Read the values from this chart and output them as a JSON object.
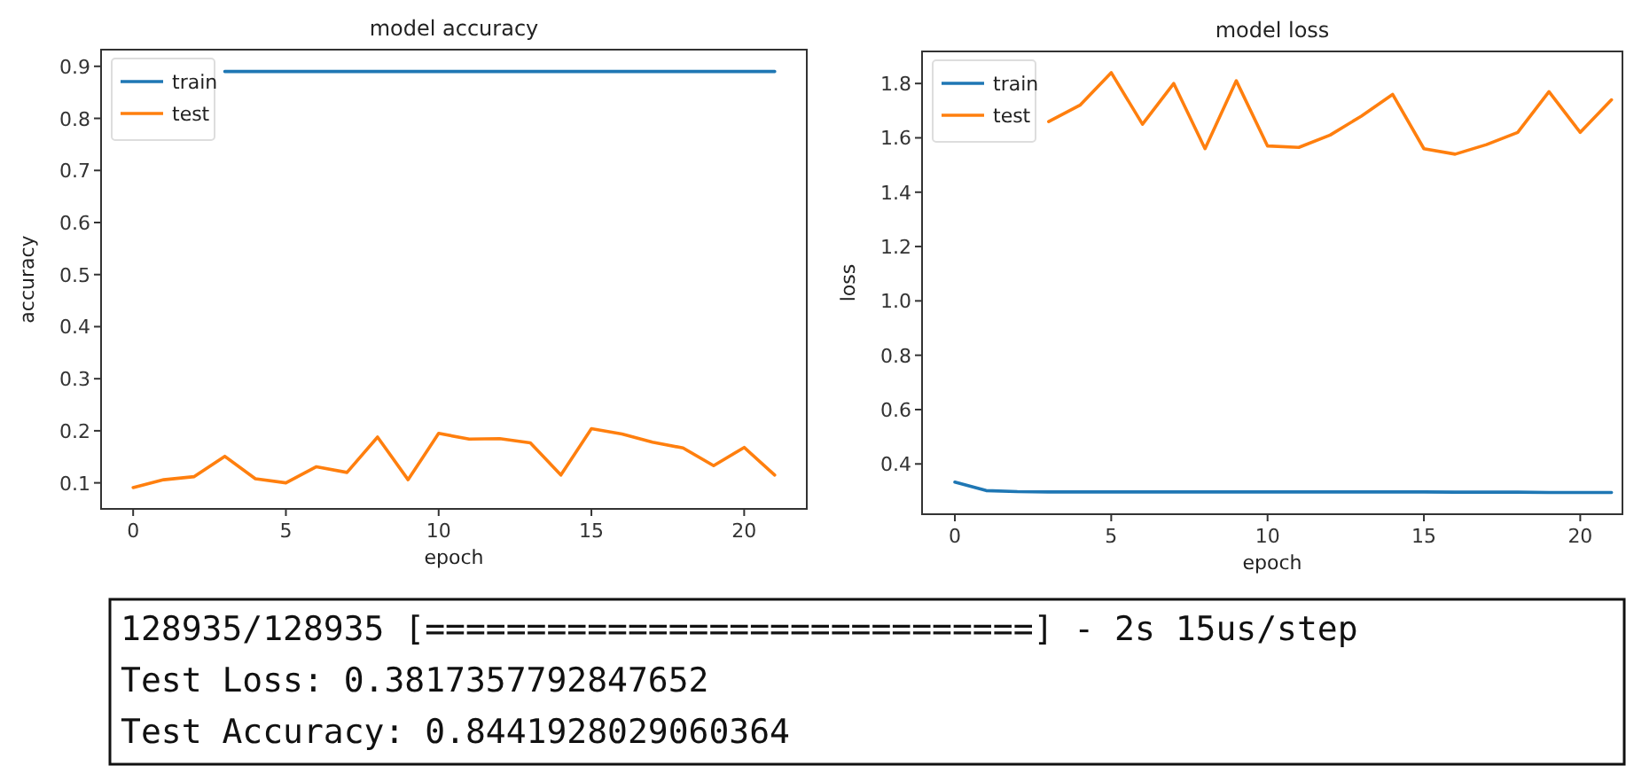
{
  "chart_data": [
    {
      "type": "line",
      "title": "model accuracy",
      "xlabel": "epoch",
      "ylabel": "accuracy",
      "x": [
        0,
        1,
        2,
        3,
        4,
        5,
        6,
        7,
        8,
        9,
        10,
        11,
        12,
        13,
        14,
        15,
        16,
        17,
        18,
        19,
        20,
        21
      ],
      "xlim": [
        -1.05,
        22.05
      ],
      "ylim": [
        0.05,
        0.932
      ],
      "xticks": [
        0,
        5,
        10,
        15,
        20
      ],
      "yticks": [
        0.1,
        0.2,
        0.3,
        0.4,
        0.5,
        0.6,
        0.7,
        0.8,
        0.9
      ],
      "legend": "top left",
      "series": [
        {
          "name": "train",
          "color": "#1f77b4",
          "values": [
            null,
            null,
            null,
            0.89,
            0.89,
            0.89,
            0.89,
            0.89,
            0.89,
            0.89,
            0.89,
            0.89,
            0.89,
            0.89,
            0.89,
            0.89,
            0.89,
            0.89,
            0.89,
            0.89,
            0.89,
            0.89
          ]
        },
        {
          "name": "test",
          "color": "#ff7f0e",
          "values": [
            0.091,
            0.106,
            0.112,
            0.151,
            0.108,
            0.1,
            0.131,
            0.12,
            0.188,
            0.106,
            0.195,
            0.184,
            0.185,
            0.177,
            0.115,
            0.204,
            0.194,
            0.178,
            0.167,
            0.133,
            0.168,
            0.115
          ]
        }
      ]
    },
    {
      "type": "line",
      "title": "model loss",
      "xlabel": "epoch",
      "ylabel": "loss",
      "x": [
        0,
        1,
        2,
        3,
        4,
        5,
        6,
        7,
        8,
        9,
        10,
        11,
        12,
        13,
        14,
        15,
        16,
        17,
        18,
        19,
        20,
        21
      ],
      "xlim": [
        -1.05,
        21.35
      ],
      "ylim": [
        0.215,
        1.918
      ],
      "xticks": [
        0,
        5,
        10,
        15,
        20
      ],
      "yticks": [
        {
          "value": 0.4,
          "label": "0.4"
        },
        {
          "value": 0.6,
          "label": "0.6"
        },
        {
          "value": 0.8,
          "label": "0.8"
        },
        {
          "value": 1.0,
          "label": "1.0"
        },
        {
          "value": 1.2,
          "label": "1.2"
        },
        {
          "value": 1.4,
          "label": "1.4"
        },
        {
          "value": 1.6,
          "label": "1.6"
        },
        {
          "value": 1.8,
          "label": "1.8"
        }
      ],
      "legend": "top left",
      "series": [
        {
          "name": "train",
          "color": "#1f77b4",
          "values": [
            0.333,
            0.302,
            0.298,
            0.297,
            0.297,
            0.297,
            0.297,
            0.297,
            0.297,
            0.297,
            0.297,
            0.297,
            0.297,
            0.297,
            0.297,
            0.297,
            0.296,
            0.296,
            0.296,
            0.295,
            0.295,
            0.295
          ]
        },
        {
          "name": "test",
          "color": "#ff7f0e",
          "values": [
            null,
            null,
            null,
            1.66,
            1.72,
            1.84,
            1.65,
            1.8,
            1.56,
            1.81,
            1.57,
            1.565,
            1.61,
            1.68,
            1.76,
            1.56,
            1.54,
            1.575,
            1.62,
            1.77,
            1.62,
            1.74
          ]
        }
      ]
    },
    {
      "type": "other",
      "annotations": [
        "128935/128935 [==============================] - 2s 15us/step",
        "Test Loss: 0.3817357792847652",
        "Test Accuracy: 0.8441928029060364"
      ]
    }
  ]
}
